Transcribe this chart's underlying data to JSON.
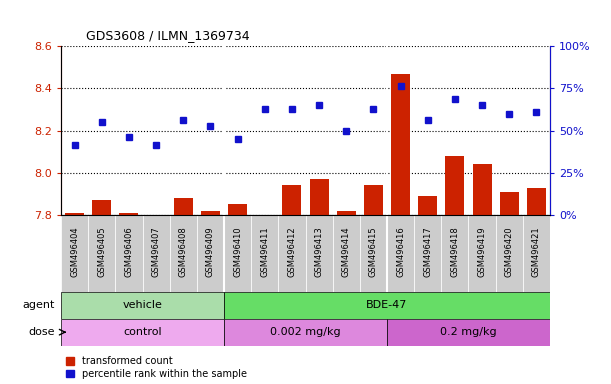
{
  "title": "GDS3608 / ILMN_1369734",
  "samples": [
    "GSM496404",
    "GSM496405",
    "GSM496406",
    "GSM496407",
    "GSM496408",
    "GSM496409",
    "GSM496410",
    "GSM496411",
    "GSM496412",
    "GSM496413",
    "GSM496414",
    "GSM496415",
    "GSM496416",
    "GSM496417",
    "GSM496418",
    "GSM496419",
    "GSM496420",
    "GSM496421"
  ],
  "red_values": [
    7.81,
    7.87,
    7.81,
    7.8,
    7.88,
    7.82,
    7.85,
    7.76,
    7.94,
    7.97,
    7.82,
    7.94,
    8.47,
    7.89,
    8.08,
    8.04,
    7.91,
    7.93
  ],
  "blue_values": [
    8.13,
    8.24,
    8.17,
    8.13,
    8.25,
    8.22,
    8.16,
    8.3,
    8.3,
    8.32,
    8.2,
    8.3,
    8.41,
    8.25,
    8.35,
    8.32,
    8.28,
    8.29
  ],
  "ylim_left": [
    7.8,
    8.6
  ],
  "ylim_right": [
    0,
    100
  ],
  "yticks_left": [
    7.8,
    8.0,
    8.2,
    8.4,
    8.6
  ],
  "yticks_right": [
    0,
    25,
    50,
    75,
    100
  ],
  "ytick_labels_right": [
    "0%",
    "25%",
    "50%",
    "75%",
    "100%"
  ],
  "bar_color": "#cc2200",
  "dot_color": "#1111cc",
  "agent_groups": [
    {
      "label": "vehicle",
      "start": 0,
      "end": 6,
      "color": "#aaddaa"
    },
    {
      "label": "BDE-47",
      "start": 6,
      "end": 18,
      "color": "#66dd66"
    }
  ],
  "dose_groups": [
    {
      "label": "control",
      "start": 0,
      "end": 6,
      "color": "#eeaaee"
    },
    {
      "label": "0.002 mg/kg",
      "start": 6,
      "end": 12,
      "color": "#dd88dd"
    },
    {
      "label": "0.2 mg/kg",
      "start": 12,
      "end": 18,
      "color": "#cc66cc"
    }
  ],
  "legend_red": "transformed count",
  "legend_blue": "percentile rank within the sample",
  "agent_label": "agent",
  "dose_label": "dose",
  "background_color": "#ffffff",
  "label_bg_color": "#cccccc",
  "plot_bg_color": "#ffffff"
}
